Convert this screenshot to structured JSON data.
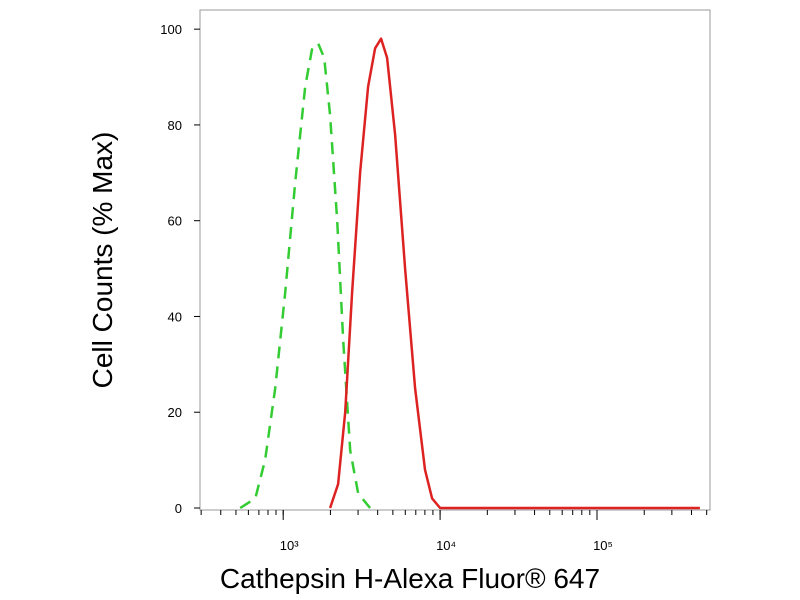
{
  "chart_data": {
    "type": "line",
    "xlabel": "Cathepsin H-Alexa Fluor® 647",
    "ylabel": "Cell Counts (% Max)",
    "xscale": "log",
    "xlim": [
      295,
      525000
    ],
    "ylim": [
      0,
      104
    ],
    "xticks": [
      {
        "value": 1000,
        "label": "10³"
      },
      {
        "value": 10000,
        "label": "10⁴"
      },
      {
        "value": 100000,
        "label": "10⁵"
      }
    ],
    "yticks": [
      0,
      20,
      40,
      60,
      80,
      100
    ],
    "series": [
      {
        "color": "#33cc33",
        "dash": true,
        "x": [
          532,
          664,
          767,
          889,
          1030,
          1192,
          1381,
          1531,
          1671,
          1825,
          1992,
          2208,
          2411,
          2673,
          3006,
          3582
        ],
        "values": [
          0,
          2,
          10,
          25,
          45,
          68,
          88,
          96,
          97,
          94,
          82,
          60,
          35,
          12,
          3,
          0
        ]
      },
      {
        "color": "#dd2222",
        "dash": false,
        "x": [
          1992,
          2239,
          2483,
          2750,
          3090,
          3475,
          3852,
          4209,
          4594,
          5164,
          5980,
          6929,
          8018,
          8892,
          10000,
          453000
        ],
        "values": [
          0,
          5,
          20,
          45,
          70,
          88,
          96,
          98,
          94,
          78,
          50,
          25,
          8,
          2,
          0,
          0
        ]
      }
    ]
  }
}
